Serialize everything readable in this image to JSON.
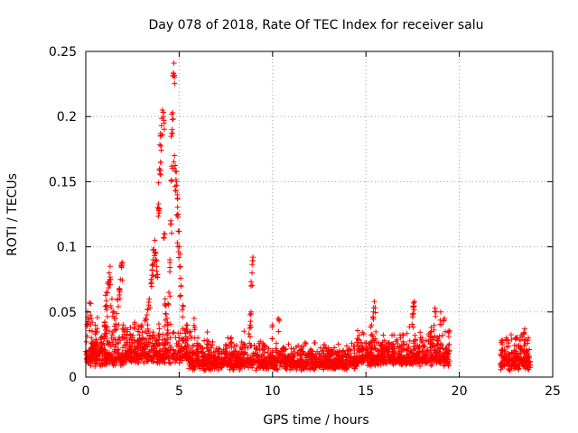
{
  "chart_data": {
    "type": "scatter",
    "title": "Day 078 of 2018, Rate Of TEC Index for receiver salu",
    "xlabel": "GPS time / hours",
    "ylabel": "ROTI / TECUs",
    "xlim": [
      0,
      25
    ],
    "ylim": [
      0,
      0.25
    ],
    "xticks": [
      0,
      5,
      10,
      15,
      20,
      25
    ],
    "yticks": [
      0,
      0.05,
      0.1,
      0.15,
      0.2,
      0.25
    ],
    "xtick_labels": [
      "0",
      "5",
      "10",
      "15",
      "20",
      "25"
    ],
    "ytick_labels": [
      "0",
      "0.05",
      "0.1",
      "0.15",
      "0.2",
      "0.25"
    ],
    "grid": true,
    "marker": "+",
    "color": "#ff0000",
    "series": [
      {
        "name": "ROTI",
        "points": [
          [
            0.1,
            0.05
          ],
          [
            0.2,
            0.057
          ],
          [
            0.3,
            0.045
          ],
          [
            0.3,
            0.03
          ],
          [
            0.5,
            0.035
          ],
          [
            0.6,
            0.025
          ],
          [
            0.8,
            0.03
          ],
          [
            1.0,
            0.04
          ],
          [
            1.1,
            0.055
          ],
          [
            1.1,
            0.065
          ],
          [
            1.2,
            0.073
          ],
          [
            1.25,
            0.08
          ],
          [
            1.3,
            0.085
          ],
          [
            1.4,
            0.06
          ],
          [
            1.5,
            0.05
          ],
          [
            1.6,
            0.045
          ],
          [
            1.7,
            0.06
          ],
          [
            1.8,
            0.068
          ],
          [
            1.85,
            0.075
          ],
          [
            1.9,
            0.086
          ],
          [
            1.95,
            0.088
          ],
          [
            2.0,
            0.04
          ],
          [
            2.2,
            0.035
          ],
          [
            2.4,
            0.03
          ],
          [
            2.6,
            0.028
          ],
          [
            2.8,
            0.035
          ],
          [
            3.0,
            0.04
          ],
          [
            3.2,
            0.045
          ],
          [
            3.3,
            0.052
          ],
          [
            3.4,
            0.06
          ],
          [
            3.5,
            0.075
          ],
          [
            3.55,
            0.082
          ],
          [
            3.6,
            0.09
          ],
          [
            3.65,
            0.098
          ],
          [
            3.7,
            0.105
          ],
          [
            3.75,
            0.09
          ],
          [
            3.8,
            0.085
          ],
          [
            3.85,
            0.13
          ],
          [
            3.9,
            0.133
          ],
          [
            3.95,
            0.16
          ],
          [
            4.0,
            0.165
          ],
          [
            4.0,
            0.185
          ],
          [
            4.05,
            0.193
          ],
          [
            4.1,
            0.205
          ],
          [
            4.15,
            0.2
          ],
          [
            4.2,
            0.11
          ],
          [
            4.25,
            0.06
          ],
          [
            4.3,
            0.055
          ],
          [
            4.35,
            0.045
          ],
          [
            4.4,
            0.04
          ],
          [
            4.45,
            0.065
          ],
          [
            4.5,
            0.09
          ],
          [
            4.55,
            0.12
          ],
          [
            4.6,
            0.162
          ],
          [
            4.62,
            0.19
          ],
          [
            4.65,
            0.203
          ],
          [
            4.7,
            0.233
          ],
          [
            4.72,
            0.241
          ],
          [
            4.75,
            0.17
          ],
          [
            4.8,
            0.158
          ],
          [
            4.85,
            0.15
          ],
          [
            4.9,
            0.14
          ],
          [
            4.92,
            0.125
          ],
          [
            4.95,
            0.112
          ],
          [
            5.0,
            0.1
          ],
          [
            5.05,
            0.085
          ],
          [
            5.1,
            0.07
          ],
          [
            5.2,
            0.055
          ],
          [
            5.4,
            0.04
          ],
          [
            5.6,
            0.035
          ],
          [
            5.8,
            0.045
          ],
          [
            6.0,
            0.03
          ],
          [
            6.5,
            0.025
          ],
          [
            7.0,
            0.022
          ],
          [
            7.5,
            0.025
          ],
          [
            8.0,
            0.02
          ],
          [
            8.5,
            0.025
          ],
          [
            8.8,
            0.04
          ],
          [
            8.85,
            0.05
          ],
          [
            8.9,
            0.08
          ],
          [
            8.95,
            0.092
          ],
          [
            9.5,
            0.025
          ],
          [
            10.0,
            0.04
          ],
          [
            10.3,
            0.045
          ],
          [
            11.0,
            0.022
          ],
          [
            12.0,
            0.02
          ],
          [
            13.0,
            0.02
          ],
          [
            14.0,
            0.02
          ],
          [
            15.0,
            0.022
          ],
          [
            15.3,
            0.04
          ],
          [
            15.4,
            0.05
          ],
          [
            15.45,
            0.058
          ],
          [
            16.0,
            0.028
          ],
          [
            17.0,
            0.032
          ],
          [
            17.5,
            0.048
          ],
          [
            17.55,
            0.057
          ],
          [
            17.6,
            0.058
          ],
          [
            18.0,
            0.03
          ],
          [
            18.5,
            0.038
          ],
          [
            18.7,
            0.053
          ],
          [
            19.0,
            0.05
          ],
          [
            19.2,
            0.045
          ],
          [
            19.4,
            0.035
          ],
          [
            22.3,
            0.025
          ],
          [
            22.6,
            0.028
          ],
          [
            23.0,
            0.03
          ],
          [
            23.3,
            0.032
          ],
          [
            23.5,
            0.037
          ],
          [
            23.7,
            0.03
          ]
        ],
        "dense_segments": [
          {
            "x_range": [
              0.0,
              2.0
            ],
            "y_range": [
              0.008,
              0.045
            ]
          },
          {
            "x_range": [
              2.0,
              5.5
            ],
            "y_range": [
              0.01,
              0.04
            ]
          },
          {
            "x_range": [
              5.5,
              9.0
            ],
            "y_range": [
              0.005,
              0.03
            ]
          },
          {
            "x_range": [
              9.0,
              14.5
            ],
            "y_range": [
              0.005,
              0.025
            ]
          },
          {
            "x_range": [
              14.5,
              19.5
            ],
            "y_range": [
              0.008,
              0.035
            ]
          },
          {
            "x_range": [
              22.2,
              23.8
            ],
            "y_range": [
              0.005,
              0.03
            ]
          }
        ]
      }
    ]
  }
}
